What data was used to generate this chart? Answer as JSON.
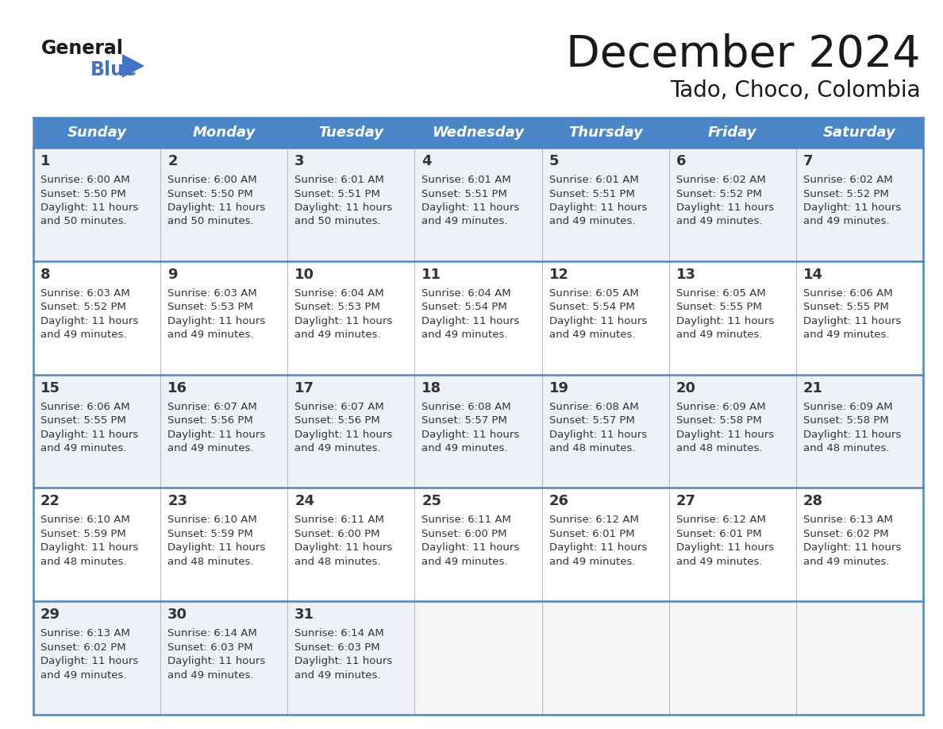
{
  "title": "December 2024",
  "subtitle": "Tado, Choco, Colombia",
  "header_color": "#4a86c8",
  "header_text_color": "#FFFFFF",
  "cell_bg_even": "#eef2f8",
  "cell_bg_odd": "#FFFFFF",
  "cell_bg_empty": "#f5f5f5",
  "border_color": "#4a86c8",
  "text_color": "#333333",
  "day_headers": [
    "Sunday",
    "Monday",
    "Tuesday",
    "Wednesday",
    "Thursday",
    "Friday",
    "Saturday"
  ],
  "weeks": [
    [
      {
        "day": 1,
        "sunrise": "6:00 AM",
        "sunset": "5:50 PM",
        "dl_min": "50"
      },
      {
        "day": 2,
        "sunrise": "6:00 AM",
        "sunset": "5:50 PM",
        "dl_min": "50"
      },
      {
        "day": 3,
        "sunrise": "6:01 AM",
        "sunset": "5:51 PM",
        "dl_min": "50"
      },
      {
        "day": 4,
        "sunrise": "6:01 AM",
        "sunset": "5:51 PM",
        "dl_min": "49"
      },
      {
        "day": 5,
        "sunrise": "6:01 AM",
        "sunset": "5:51 PM",
        "dl_min": "49"
      },
      {
        "day": 6,
        "sunrise": "6:02 AM",
        "sunset": "5:52 PM",
        "dl_min": "49"
      },
      {
        "day": 7,
        "sunrise": "6:02 AM",
        "sunset": "5:52 PM",
        "dl_min": "49"
      }
    ],
    [
      {
        "day": 8,
        "sunrise": "6:03 AM",
        "sunset": "5:52 PM",
        "dl_min": "49"
      },
      {
        "day": 9,
        "sunrise": "6:03 AM",
        "sunset": "5:53 PM",
        "dl_min": "49"
      },
      {
        "day": 10,
        "sunrise": "6:04 AM",
        "sunset": "5:53 PM",
        "dl_min": "49"
      },
      {
        "day": 11,
        "sunrise": "6:04 AM",
        "sunset": "5:54 PM",
        "dl_min": "49"
      },
      {
        "day": 12,
        "sunrise": "6:05 AM",
        "sunset": "5:54 PM",
        "dl_min": "49"
      },
      {
        "day": 13,
        "sunrise": "6:05 AM",
        "sunset": "5:55 PM",
        "dl_min": "49"
      },
      {
        "day": 14,
        "sunrise": "6:06 AM",
        "sunset": "5:55 PM",
        "dl_min": "49"
      }
    ],
    [
      {
        "day": 15,
        "sunrise": "6:06 AM",
        "sunset": "5:55 PM",
        "dl_min": "49"
      },
      {
        "day": 16,
        "sunrise": "6:07 AM",
        "sunset": "5:56 PM",
        "dl_min": "49"
      },
      {
        "day": 17,
        "sunrise": "6:07 AM",
        "sunset": "5:56 PM",
        "dl_min": "49"
      },
      {
        "day": 18,
        "sunrise": "6:08 AM",
        "sunset": "5:57 PM",
        "dl_min": "49"
      },
      {
        "day": 19,
        "sunrise": "6:08 AM",
        "sunset": "5:57 PM",
        "dl_min": "48"
      },
      {
        "day": 20,
        "sunrise": "6:09 AM",
        "sunset": "5:58 PM",
        "dl_min": "48"
      },
      {
        "day": 21,
        "sunrise": "6:09 AM",
        "sunset": "5:58 PM",
        "dl_min": "48"
      }
    ],
    [
      {
        "day": 22,
        "sunrise": "6:10 AM",
        "sunset": "5:59 PM",
        "dl_min": "48"
      },
      {
        "day": 23,
        "sunrise": "6:10 AM",
        "sunset": "5:59 PM",
        "dl_min": "48"
      },
      {
        "day": 24,
        "sunrise": "6:11 AM",
        "sunset": "6:00 PM",
        "dl_min": "48"
      },
      {
        "day": 25,
        "sunrise": "6:11 AM",
        "sunset": "6:00 PM",
        "dl_min": "49"
      },
      {
        "day": 26,
        "sunrise": "6:12 AM",
        "sunset": "6:01 PM",
        "dl_min": "49"
      },
      {
        "day": 27,
        "sunrise": "6:12 AM",
        "sunset": "6:01 PM",
        "dl_min": "49"
      },
      {
        "day": 28,
        "sunrise": "6:13 AM",
        "sunset": "6:02 PM",
        "dl_min": "49"
      }
    ],
    [
      {
        "day": 29,
        "sunrise": "6:13 AM",
        "sunset": "6:02 PM",
        "dl_min": "49"
      },
      {
        "day": 30,
        "sunrise": "6:14 AM",
        "sunset": "6:03 PM",
        "dl_min": "49"
      },
      {
        "day": 31,
        "sunrise": "6:14 AM",
        "sunset": "6:03 PM",
        "dl_min": "49"
      },
      null,
      null,
      null,
      null
    ]
  ]
}
